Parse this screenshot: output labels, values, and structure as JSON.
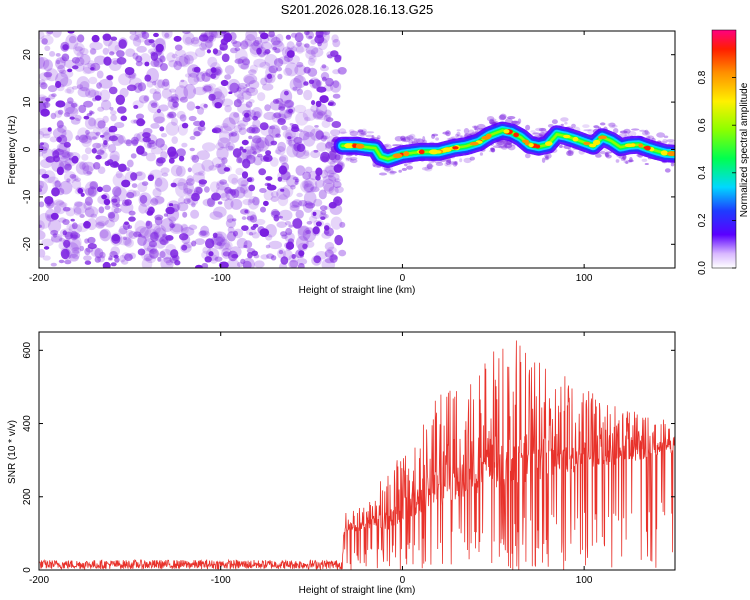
{
  "title": "S201.2026.028.16.13.G25",
  "colors": {
    "snr_line": "#e8322b",
    "speckle": "#7a1ee0",
    "axis": "#000000"
  },
  "chart_data": [
    {
      "type": "heatmap",
      "name": "spectrogram",
      "xlabel": "Height of straight line (km)",
      "ylabel": "Frequency (Hz)",
      "xlim": [
        -200,
        150
      ],
      "ylim": [
        -25,
        25
      ],
      "xticks": [
        -200,
        -100,
        0,
        100
      ],
      "xtick_labels": [
        "-200",
        "-100",
        "0",
        "100"
      ],
      "yticks": [
        -20,
        -10,
        0,
        10,
        20
      ],
      "ytick_labels": [
        "-20",
        "-10",
        "0",
        "10",
        "20"
      ],
      "noise_region_x": [
        -200,
        -33
      ],
      "signal_track": {
        "x": [
          -33,
          -25,
          -20,
          -15,
          -12,
          -8,
          0,
          10,
          20,
          28,
          35,
          42,
          48,
          55,
          60,
          65,
          70,
          75,
          80,
          85,
          90,
          95,
          100,
          105,
          110,
          115,
          120,
          125,
          130,
          135,
          140,
          145,
          150
        ],
        "freq": [
          0.8,
          0.8,
          0.5,
          0.3,
          -1.5,
          -2.0,
          -1.0,
          -0.5,
          -0.5,
          0.3,
          0.7,
          1.5,
          3.0,
          4.0,
          3.6,
          2.6,
          1.0,
          0.6,
          1.0,
          3.2,
          2.8,
          2.2,
          1.5,
          0.8,
          2.6,
          1.8,
          0.5,
          0.9,
          1.0,
          0.3,
          -0.3,
          -0.8,
          -0.9
        ]
      },
      "colorbar": {
        "label": "Normalized spectral amplitude",
        "range": [
          0,
          1
        ],
        "ticks": [
          0.0,
          0.2,
          0.4,
          0.6,
          0.8
        ],
        "tick_labels": [
          "0.0",
          "0.2",
          "0.4",
          "0.6",
          "0.8"
        ]
      }
    },
    {
      "type": "line",
      "name": "snr",
      "xlabel": "Height of straight line (km)",
      "ylabel": "SNR (10 * v/v)",
      "xlim": [
        -200,
        150
      ],
      "ylim": [
        0,
        650
      ],
      "xticks": [
        -200,
        -100,
        0,
        100
      ],
      "xtick_labels": [
        "-200",
        "-100",
        "0",
        "100"
      ],
      "yticks": [
        0,
        200,
        400,
        600
      ],
      "ytick_labels": [
        "0",
        "200",
        "400",
        "600"
      ],
      "series": [
        {
          "name": "SNR",
          "envelope": {
            "x": [
              -200,
              -33,
              -32,
              -20,
              -15,
              -10,
              0,
              10,
              20,
              30,
              40,
              50,
              60,
              65,
              70,
              80,
              90,
              100,
              110,
              120,
              130,
              140,
              150
            ],
            "base": [
              10,
              10,
              100,
              110,
              120,
              100,
              130,
              150,
              170,
              190,
              200,
              210,
              230,
              240,
              240,
              250,
              260,
              270,
              280,
              290,
              300,
              310,
              320
            ],
            "peak": [
              35,
              35,
              160,
              180,
              220,
              280,
              320,
              400,
              480,
              530,
              560,
              600,
              620,
              645,
              600,
              560,
              530,
              500,
              470,
              450,
              440,
              420,
              420
            ]
          }
        }
      ]
    }
  ]
}
